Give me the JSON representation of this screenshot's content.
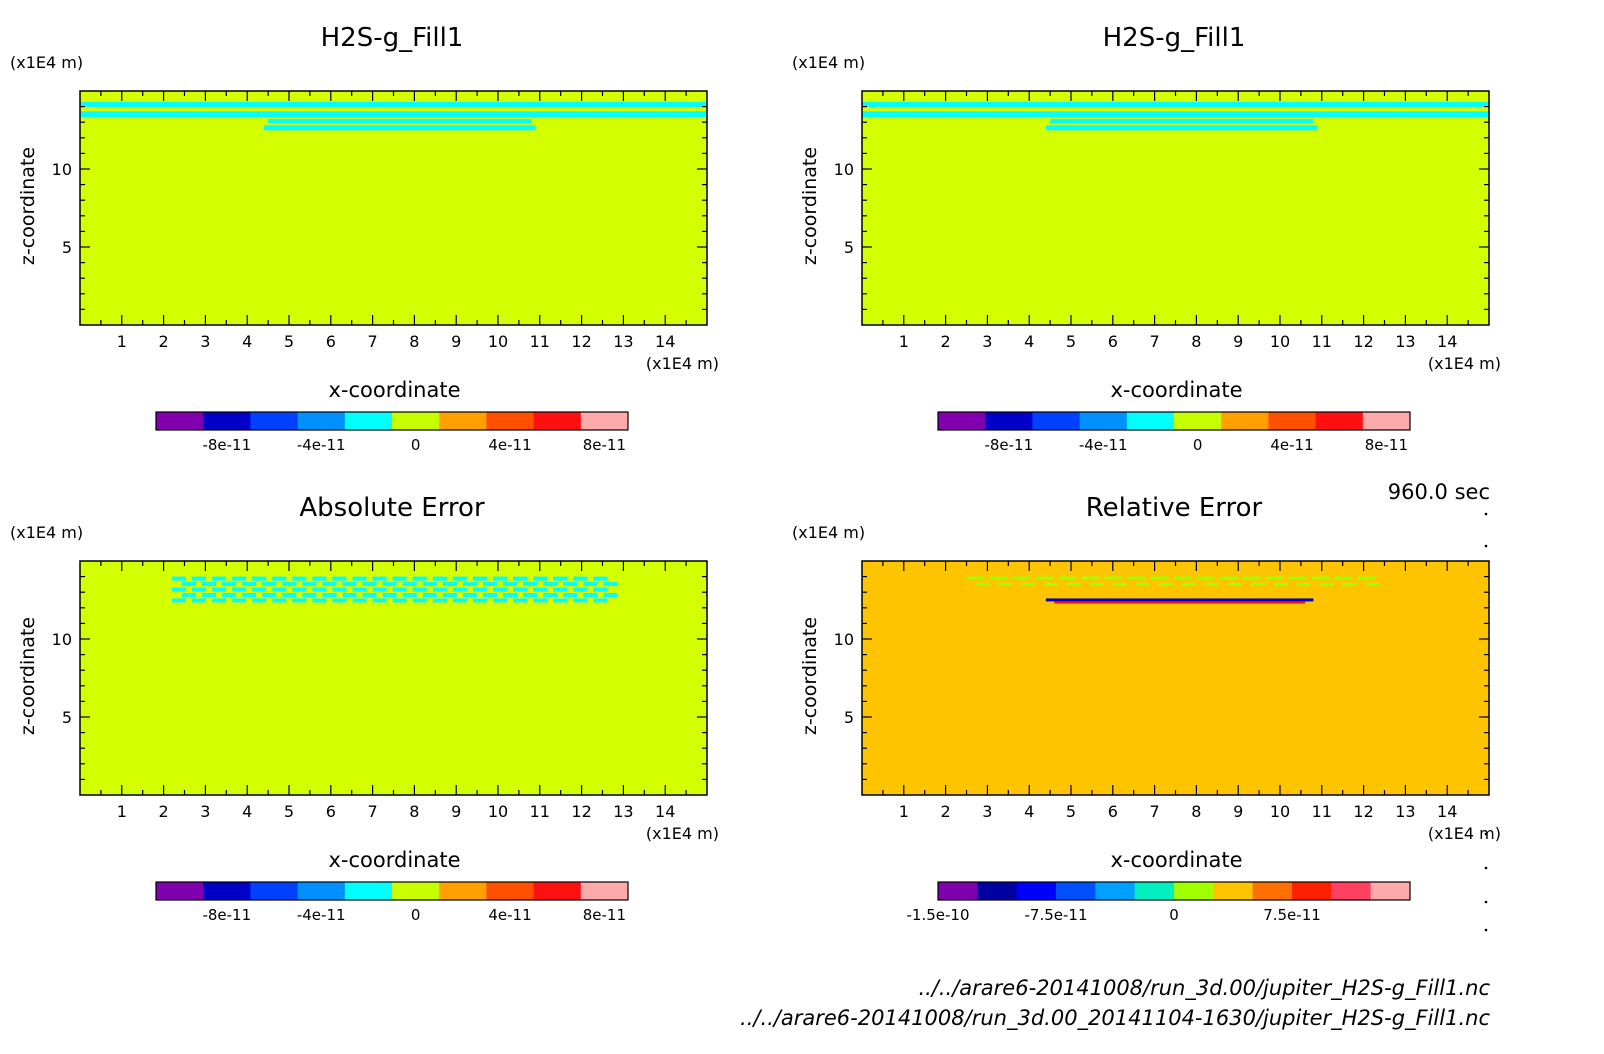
{
  "time_label": "960.0 sec",
  "files": [
    "../../arare6-20141008/run_3d.00/jupiter_H2S-g_Fill1.nc",
    "../../arare6-20141008/run_3d.00_20141104-1630/jupiter_H2S-g_Fill1.nc"
  ],
  "colors": {
    "background_field": "#d4ff00",
    "relative_background": "#ffc400",
    "anomaly_cyan": "#00ffff"
  },
  "chart_data": [
    {
      "type": "heatmap",
      "title": "H2S-g_Fill1",
      "xlabel": "x-coordinate",
      "ylabel": "z-coordinate",
      "x_unit": "(x1E4 m)",
      "y_unit": "(x1E4 m)",
      "xlim": [
        0,
        15
      ],
      "ylim": [
        0,
        15
      ],
      "x_ticks": [
        1,
        2,
        3,
        4,
        5,
        6,
        7,
        8,
        9,
        10,
        11,
        12,
        13,
        14
      ],
      "y_ticks": [
        5,
        10
      ],
      "colorbar": {
        "colors": [
          "#8000b0",
          "#0000c8",
          "#0040ff",
          "#0090ff",
          "#00ffff",
          "#c8ff00",
          "#ffa000",
          "#ff5000",
          "#ff1010",
          "#ffaaaa"
        ],
        "tick_labels": [
          "-8e-11",
          "-4e-11",
          "0",
          "4e-11",
          "8e-11"
        ],
        "tick_positions": [
          1,
          3,
          5,
          7,
          9
        ]
      }
    },
    {
      "type": "heatmap",
      "title": "H2S-g_Fill1",
      "xlabel": "x-coordinate",
      "ylabel": "z-coordinate",
      "x_unit": "(x1E4 m)",
      "y_unit": "(x1E4 m)",
      "xlim": [
        0,
        15
      ],
      "ylim": [
        0,
        15
      ],
      "x_ticks": [
        1,
        2,
        3,
        4,
        5,
        6,
        7,
        8,
        9,
        10,
        11,
        12,
        13,
        14
      ],
      "y_ticks": [
        5,
        10
      ],
      "colorbar": {
        "colors": [
          "#8000b0",
          "#0000c8",
          "#0040ff",
          "#0090ff",
          "#00ffff",
          "#c8ff00",
          "#ffa000",
          "#ff5000",
          "#ff1010",
          "#ffaaaa"
        ],
        "tick_labels": [
          "-8e-11",
          "-4e-11",
          "0",
          "4e-11",
          "8e-11"
        ],
        "tick_positions": [
          1,
          3,
          5,
          7,
          9
        ]
      }
    },
    {
      "type": "heatmap",
      "title": "Absolute Error",
      "xlabel": "x-coordinate",
      "ylabel": "z-coordinate",
      "x_unit": "(x1E4 m)",
      "y_unit": "(x1E4 m)",
      "xlim": [
        0,
        15
      ],
      "ylim": [
        0,
        15
      ],
      "x_ticks": [
        1,
        2,
        3,
        4,
        5,
        6,
        7,
        8,
        9,
        10,
        11,
        12,
        13,
        14
      ],
      "y_ticks": [
        5,
        10
      ],
      "colorbar": {
        "colors": [
          "#8000b0",
          "#0000c8",
          "#0040ff",
          "#0090ff",
          "#00ffff",
          "#c8ff00",
          "#ffa000",
          "#ff5000",
          "#ff1010",
          "#ffaaaa"
        ],
        "tick_labels": [
          "-8e-11",
          "-4e-11",
          "0",
          "4e-11",
          "8e-11"
        ],
        "tick_positions": [
          1,
          3,
          5,
          7,
          9
        ]
      }
    },
    {
      "type": "heatmap",
      "title": "Relative Error",
      "xlabel": "x-coordinate",
      "ylabel": "z-coordinate",
      "x_unit": "(x1E4 m)",
      "y_unit": "(x1E4 m)",
      "xlim": [
        0,
        15
      ],
      "ylim": [
        0,
        15
      ],
      "x_ticks": [
        1,
        2,
        3,
        4,
        5,
        6,
        7,
        8,
        9,
        10,
        11,
        12,
        13,
        14
      ],
      "y_ticks": [
        5,
        10
      ],
      "colorbar": {
        "colors": [
          "#8000b0",
          "#0000a0",
          "#0000ff",
          "#0050ff",
          "#00a0ff",
          "#00f0c0",
          "#a0ff00",
          "#ffc400",
          "#ff7000",
          "#ff2000",
          "#ff4060",
          "#ffaaaa"
        ],
        "tick_labels": [
          "-1.5e-10",
          "-7.5e-11",
          "0",
          "7.5e-11"
        ],
        "tick_positions": [
          0,
          3,
          6,
          9
        ]
      }
    }
  ]
}
